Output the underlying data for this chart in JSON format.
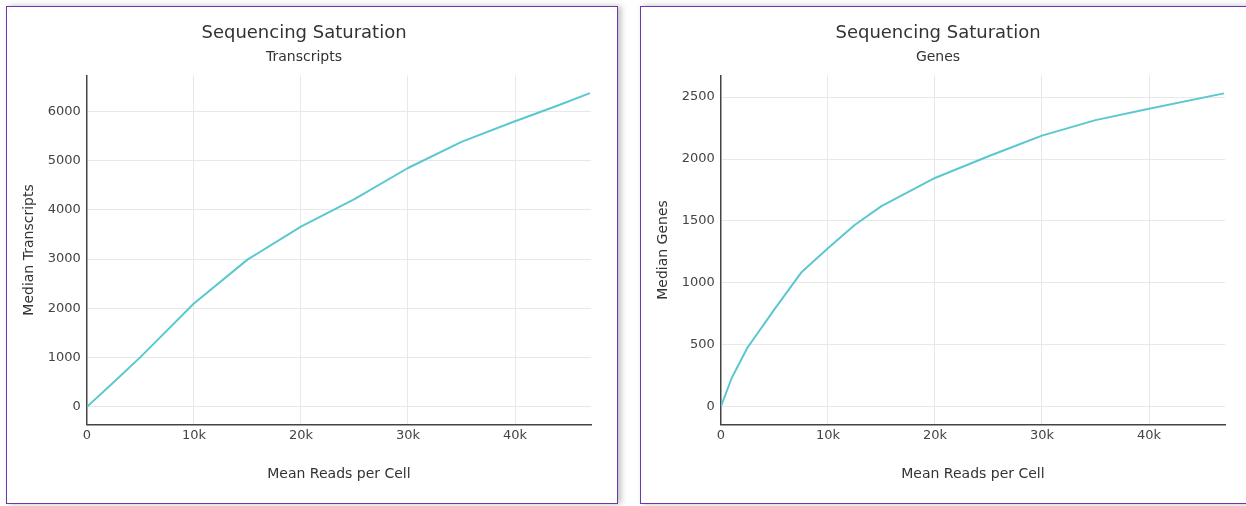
{
  "chart_data": [
    {
      "type": "line",
      "title": "Sequencing Saturation",
      "subtitle": "Transcripts",
      "xlabel": "Mean Reads per Cell",
      "ylabel": "Median Transcripts",
      "xlim": [
        0,
        47100
      ],
      "ylim": [
        -360,
        6730
      ],
      "xticks": [
        0,
        {
          "value": 10000,
          "label": "10k"
        },
        {
          "value": 20000,
          "label": "20k"
        },
        {
          "value": 30000,
          "label": "30k"
        },
        {
          "value": 40000,
          "label": "40k"
        }
      ],
      "yticks": [
        0,
        1000,
        2000,
        3000,
        4000,
        5000,
        6000
      ],
      "grid": true,
      "legend": false,
      "marker": "none",
      "series": [
        {
          "color": "#5bc8cf",
          "x": [
            0,
            2500,
            5000,
            10000,
            15000,
            20000,
            25000,
            30000,
            35000,
            40000,
            44000,
            47000
          ],
          "values": [
            0,
            500,
            1010,
            2100,
            2990,
            3660,
            4220,
            4850,
            5380,
            5800,
            6120,
            6370
          ]
        }
      ]
    },
    {
      "type": "line",
      "title": "Sequencing Saturation",
      "subtitle": "Genes",
      "xlabel": "Mean Reads per Cell",
      "ylabel": "Median Genes",
      "xlim": [
        0,
        47100
      ],
      "ylim": [
        -144,
        2675
      ],
      "xticks": [
        0,
        {
          "value": 10000,
          "label": "10k"
        },
        {
          "value": 20000,
          "label": "20k"
        },
        {
          "value": 30000,
          "label": "30k"
        },
        {
          "value": 40000,
          "label": "40k"
        }
      ],
      "yticks": [
        0,
        500,
        1000,
        1500,
        2000,
        2500
      ],
      "grid": true,
      "legend": false,
      "marker": "none",
      "series": [
        {
          "color": "#5bc8cf",
          "x": [
            0,
            1000,
            2500,
            5000,
            7500,
            10000,
            12500,
            15000,
            20000,
            25000,
            30000,
            35000,
            40000,
            47000
          ],
          "values": [
            0,
            230,
            480,
            786,
            1083,
            1280,
            1467,
            1620,
            1847,
            2022,
            2189,
            2314,
            2406,
            2530
          ]
        }
      ]
    }
  ]
}
